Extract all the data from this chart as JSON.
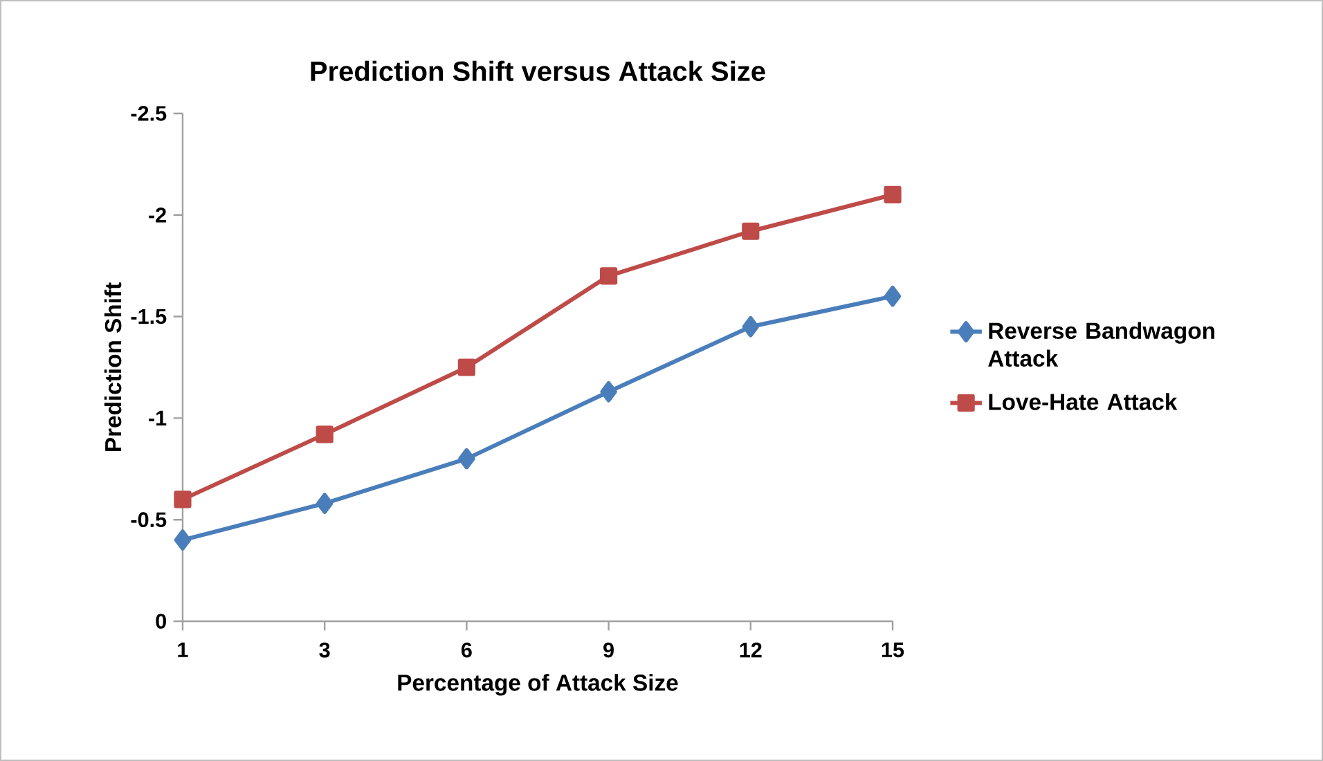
{
  "chart_data": {
    "type": "line",
    "title": "Prediction Shift versus Attack Size",
    "xlabel": "Percentage of Attack Size",
    "ylabel": "Prediction Shift",
    "categories": [
      "1",
      "3",
      "6",
      "9",
      "12",
      "15"
    ],
    "series": [
      {
        "name": "Reverse Bandwagon Attack",
        "color": "#4a7ebb",
        "marker": "diamond",
        "values": [
          -0.4,
          -0.58,
          -0.8,
          -1.13,
          -1.45,
          -1.6
        ]
      },
      {
        "name": "Love-Hate Attack",
        "color": "#be4b48",
        "marker": "square",
        "values": [
          -0.6,
          -0.92,
          -1.25,
          -1.7,
          -1.92,
          -2.1
        ]
      }
    ],
    "ylim": [
      0,
      -2.5
    ],
    "yticks": [
      0,
      -0.5,
      -1,
      -1.5,
      -2,
      -2.5
    ],
    "grid": false,
    "legend": "right",
    "line_style": "solid"
  }
}
